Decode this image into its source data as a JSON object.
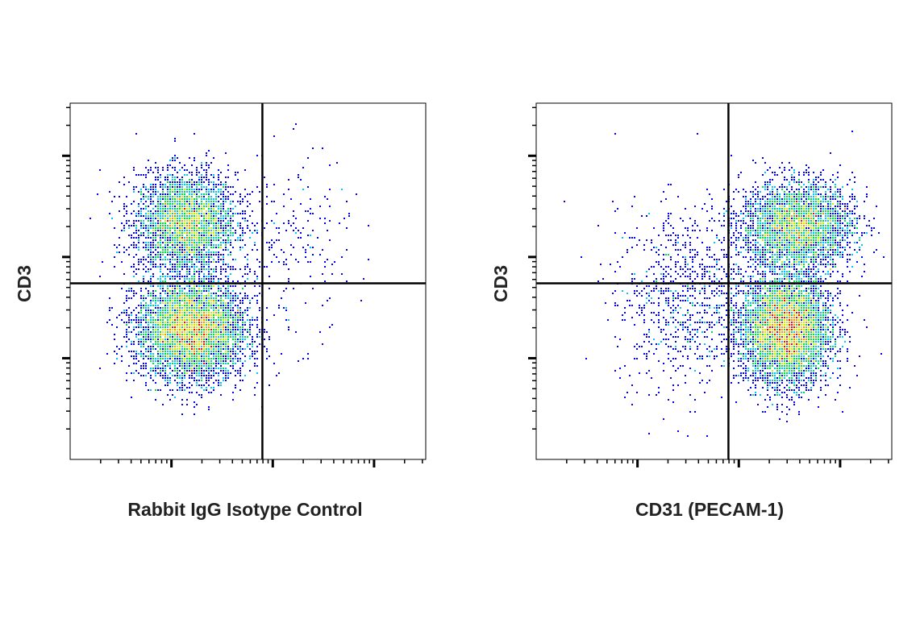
{
  "chart_data": [
    {
      "type": "scatter",
      "subtype": "flow-cytometry-density",
      "xlabel": "Rabbit IgG Isotype Control",
      "ylabel": "CD3",
      "xscale": "log",
      "yscale": "log",
      "xlim": [
        1,
        3236
      ],
      "ylim": [
        1,
        3311
      ],
      "major_ticks": [
        10,
        100,
        1000
      ],
      "tick_labels_shown": false,
      "quadrant_gate": {
        "x": 79,
        "y": 55
      },
      "populations": [
        {
          "center": [
            14,
            213
          ],
          "spread_decades": [
            0.25,
            0.25
          ],
          "count": 3400
        },
        {
          "center": [
            16,
            19
          ],
          "spread_decades": [
            0.27,
            0.25
          ],
          "count": 5200
        },
        {
          "center": [
            150,
            120
          ],
          "spread_decades": [
            0.3,
            0.45
          ],
          "count": 220
        }
      ],
      "colors": [
        "#0000ff",
        "#00c8ff",
        "#00e040",
        "#c8f000",
        "#ff9000",
        "#ff0000"
      ]
    },
    {
      "type": "scatter",
      "subtype": "flow-cytometry-density",
      "xlabel": "CD31 (PECAM-1)",
      "ylabel": "CD3",
      "xscale": "log",
      "yscale": "log",
      "xlim": [
        1,
        3236
      ],
      "ylim": [
        1,
        3311
      ],
      "major_ticks": [
        10,
        100,
        1000
      ],
      "tick_labels_shown": false,
      "quadrant_gate": {
        "x": 79,
        "y": 55
      },
      "populations": [
        {
          "center": [
            380,
            200
          ],
          "spread_decades": [
            0.28,
            0.22
          ],
          "count": 3400
        },
        {
          "center": [
            295,
            19
          ],
          "spread_decades": [
            0.22,
            0.27
          ],
          "count": 5200
        },
        {
          "center": [
            30,
            40
          ],
          "spread_decades": [
            0.35,
            0.45
          ],
          "count": 900
        }
      ],
      "colors": [
        "#0000ff",
        "#00c8ff",
        "#00e040",
        "#c8f000",
        "#ff9000",
        "#ff0000"
      ]
    }
  ]
}
